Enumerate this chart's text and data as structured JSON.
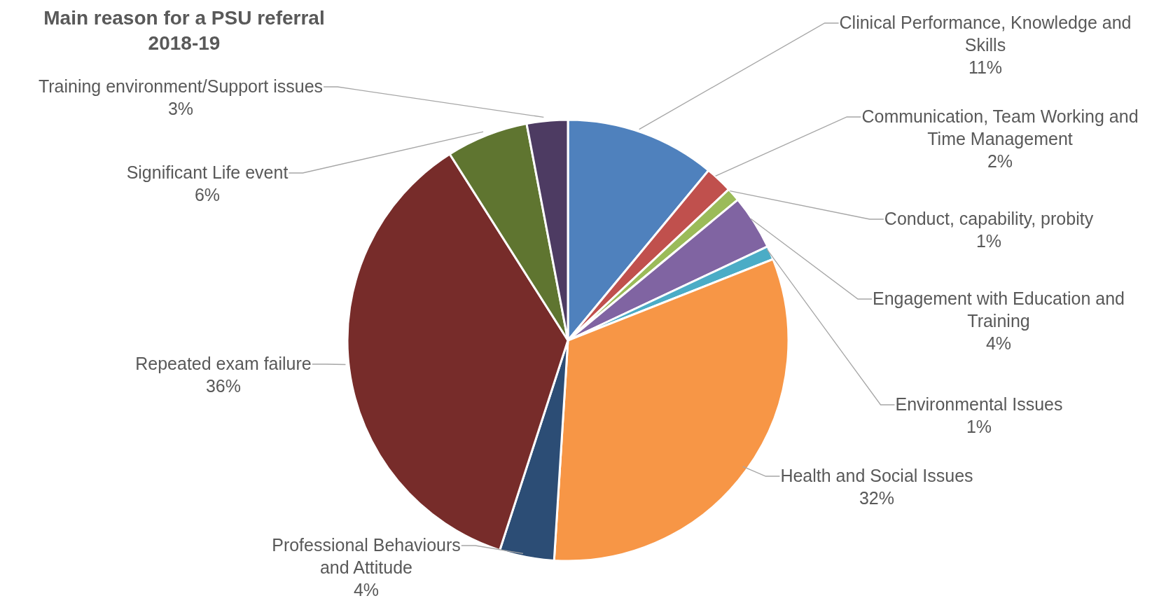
{
  "chart_data": {
    "type": "pie",
    "title": "Main reason for a PSU referral 2018-19",
    "categories": [
      "Clinical Performance, Knowledge and Skills",
      "Communication, Team Working and Time Management",
      "Conduct, capability, probity",
      "Engagement with Education and Training",
      "Environmental Issues",
      "Health and Social Issues",
      "Professional Behaviours and Attitude",
      "Repeated exam failure",
      "Significant Life event",
      "Training environment/Support issues"
    ],
    "values": [
      11,
      2,
      1,
      4,
      1,
      32,
      4,
      36,
      6,
      3
    ],
    "colors": [
      "#4f81bd",
      "#c0504d",
      "#9bbb59",
      "#8064a2",
      "#4bacc6",
      "#f79646",
      "#2c4d75",
      "#772c2a",
      "#5f7530",
      "#4d3b62"
    ],
    "value_labels": [
      "11%",
      "2%",
      "1%",
      "4%",
      "1%",
      "32%",
      "4%",
      "36%",
      "6%",
      "3%"
    ],
    "legend": false
  }
}
